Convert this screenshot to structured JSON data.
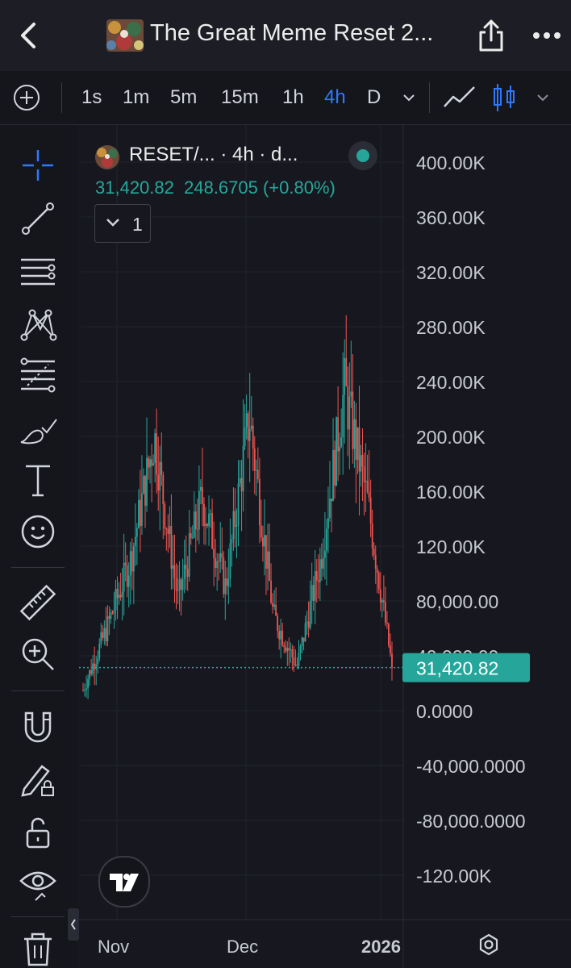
{
  "header": {
    "title": "The Great Meme Reset 2...",
    "back_icon": "chevron-left-icon",
    "share_icon": "share-icon",
    "more_icon": "more-dots-icon"
  },
  "toolbar": {
    "intervals": [
      "1s",
      "1m",
      "5m",
      "15m",
      "1h",
      "4h",
      "D"
    ],
    "active_interval": "4h"
  },
  "left_tools": [
    "crosshair-icon",
    "trend-line-icon",
    "horizontal-lines-icon",
    "pattern-icon",
    "fib-icon",
    "brush-icon",
    "text-icon",
    "emoji-icon",
    "ruler-icon",
    "zoom-in-icon",
    "magnet-icon",
    "lock-drawings-icon",
    "unlock-icon",
    "visibility-icon",
    "trash-icon"
  ],
  "legend": {
    "symbol": "RESET/... · 4h · d...",
    "price": "31,420.82",
    "change": "248.6705 (+0.80%)",
    "collapsed_count": "1"
  },
  "colors": {
    "up": "#26a69a",
    "down": "#ef5350",
    "accent": "#2e78ff",
    "background": "#17181f"
  },
  "chart_data": {
    "type": "candlestick",
    "interval": "4h",
    "y_ticks": [
      "400.00K",
      "360.00K",
      "320.00K",
      "280.00K",
      "240.00K",
      "200.00K",
      "160.00K",
      "120.00K",
      "80,000.00",
      "40,000.00",
      "0.0000",
      "-40,000.0000",
      "-80,000.0000",
      "-120.00K"
    ],
    "x_ticks": [
      "Nov",
      "Dec",
      "2026"
    ],
    "last_price_label": "31,420.82",
    "last_price_value": 31420.82,
    "ylim": [
      -120000,
      400000
    ],
    "approx_path": [
      {
        "t": "Oct end",
        "price": 15000
      },
      {
        "t": "Early Nov",
        "price": 60000
      },
      {
        "t": "Mid Nov",
        "price": 110000
      },
      {
        "t": "Nov peak",
        "price": 200000
      },
      {
        "t": "Late Nov",
        "price": 80000
      },
      {
        "t": "Early Dec",
        "price": 155000
      },
      {
        "t": "Dec",
        "price": 90000
      },
      {
        "t": "Dec peak",
        "price": 215000
      },
      {
        "t": "Late Dec",
        "price": 70000
      },
      {
        "t": "Dec low",
        "price": 32000
      },
      {
        "t": "Year-end",
        "price": 110000
      },
      {
        "t": "Jan peak",
        "price": 235000
      },
      {
        "t": "Jan",
        "price": 150000
      },
      {
        "t": "Now",
        "price": 31420.82
      }
    ]
  }
}
